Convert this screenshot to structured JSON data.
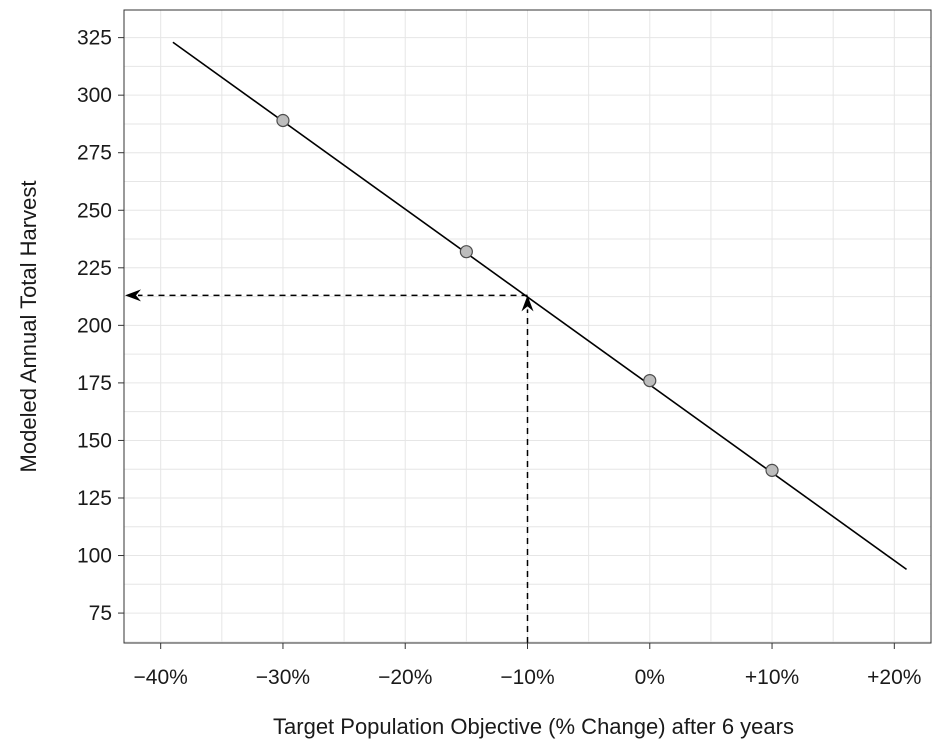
{
  "chart_data": {
    "type": "line",
    "title": "",
    "xlabel": "Target Population Objective (% Change) after 6 years",
    "ylabel": "Modeled Annual Total Harvest",
    "xlim": [
      -43,
      23
    ],
    "ylim": [
      62,
      337
    ],
    "x_ticks": [
      -40,
      -30,
      -20,
      -10,
      0,
      10,
      20
    ],
    "x_tick_labels": [
      "−40%",
      "−30%",
      "−20%",
      "−10%",
      "0%",
      "+10%",
      "+20%"
    ],
    "y_ticks": [
      75,
      100,
      125,
      150,
      175,
      200,
      225,
      250,
      275,
      300,
      325
    ],
    "y_tick_labels": [
      "75",
      "100",
      "125",
      "150",
      "175",
      "200",
      "225",
      "250",
      "275",
      "300",
      "325"
    ],
    "grid": true,
    "series": [
      {
        "kind": "fit-line",
        "x": [
          -39,
          21
        ],
        "y": [
          323,
          94
        ]
      },
      {
        "kind": "points",
        "x": [
          -30,
          -15,
          0,
          10
        ],
        "y": [
          289,
          232,
          176,
          137
        ]
      }
    ],
    "annotation": {
      "x": -10,
      "y": 213
    },
    "colors": {
      "line": "#000000",
      "marker_fill": "#bdbdbd",
      "marker_stroke": "#4d4d4d",
      "grid": "#e6e6e6",
      "frame": "#333333"
    }
  }
}
